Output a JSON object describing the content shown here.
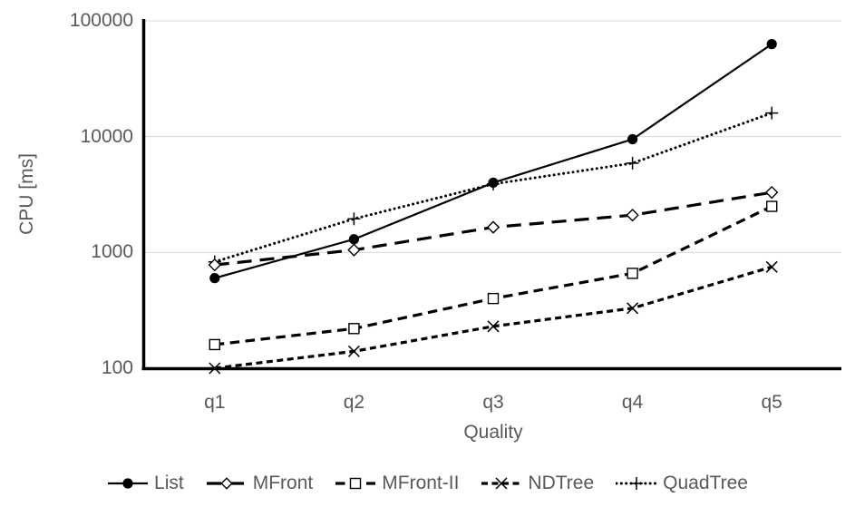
{
  "chart_data": {
    "type": "line",
    "title": "",
    "xlabel": "Quality",
    "ylabel": "CPU [ms]",
    "x_categories": [
      "q1",
      "q2",
      "q3",
      "q4",
      "q5"
    ],
    "y_scale": "log10",
    "ylim": [
      100,
      100000
    ],
    "y_ticks": [
      100,
      1000,
      10000,
      100000
    ],
    "y_tick_labels": [
      "100",
      "1000",
      "10000",
      "100000"
    ],
    "grid": "horizontal-gridlines-per-decade",
    "legend_position": "bottom",
    "series": [
      {
        "name": "List",
        "values": [
          600,
          1300,
          4000,
          9500,
          63000
        ],
        "line_style": "solid",
        "marker": "filled-circle-icon"
      },
      {
        "name": "MFront",
        "values": [
          780,
          1050,
          1650,
          2100,
          3300
        ],
        "line_style": "long-dash",
        "marker": "open-diamond-icon"
      },
      {
        "name": "MFront-II",
        "values": [
          160,
          220,
          400,
          660,
          2500
        ],
        "line_style": "dash",
        "marker": "open-square-icon"
      },
      {
        "name": "NDTree",
        "values": [
          100,
          140,
          230,
          330,
          750
        ],
        "line_style": "short-dash",
        "marker": "x-icon"
      },
      {
        "name": "QuadTree",
        "values": [
          830,
          1950,
          3900,
          5900,
          16000
        ],
        "line_style": "dotted",
        "marker": "plus-icon"
      }
    ],
    "colors": {
      "series_line": "#000000",
      "axis": "#000000",
      "gridline": "#D9D9D9",
      "text": "#595959",
      "background": "#FFFFFF"
    }
  }
}
